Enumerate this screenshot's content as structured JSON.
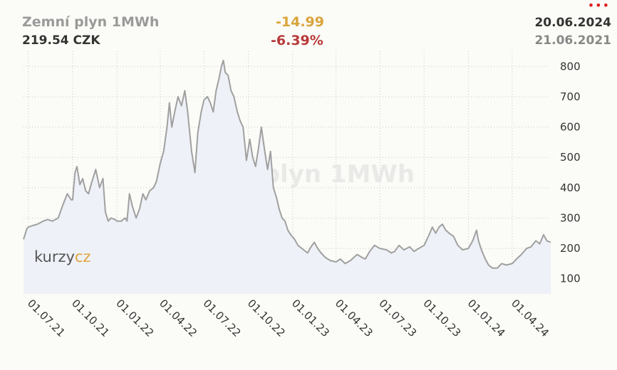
{
  "header": {
    "name": "Zemní plyn 1MWh",
    "price": "219.54 CZK",
    "change": "-14.99",
    "change_pct": "-6.39%",
    "date_to": "20.06.2024",
    "date_from": "21.06.2021",
    "menu_icon": "more-dots-icon",
    "menu_glyph": "•••"
  },
  "watermark": {
    "text": "Zemní plyn 1MWh",
    "logo_main": "kurzy",
    "logo_suffix": "cz"
  },
  "colors": {
    "line": "#a0a0a0",
    "area": "#eef1f7",
    "grid": "#c7c7c7",
    "change": "#d9a43a",
    "change_pct": "#b73a3a",
    "menu": "#dd1f1f"
  },
  "chart_data": {
    "type": "area",
    "title": "Zemní plyn 1MWh",
    "x_range": [
      "2021-06-21",
      "2024-06-20"
    ],
    "ylim": [
      50,
      850
    ],
    "yticks": [
      100,
      200,
      300,
      400,
      500,
      600,
      700,
      800
    ],
    "xtick_labels": [
      "01.07.21",
      "01.10.21",
      "01.01.22",
      "01.04.22",
      "01.07.22",
      "01.10.22",
      "01.01.23",
      "01.04.23",
      "01.07.23",
      "01.10.23",
      "01.01.24",
      "01.04.24"
    ],
    "xtick_dates": [
      "2021-07-01",
      "2021-10-01",
      "2022-01-01",
      "2022-04-01",
      "2022-07-01",
      "2022-10-01",
      "2023-01-01",
      "2023-04-01",
      "2023-07-01",
      "2023-10-01",
      "2024-01-01",
      "2024-04-01"
    ],
    "grid": true,
    "series": [
      {
        "points": [
          [
            "2021-06-21",
            230
          ],
          [
            "2021-06-28",
            265
          ],
          [
            "2021-07-01",
            270
          ],
          [
            "2021-07-10",
            275
          ],
          [
            "2021-07-20",
            280
          ],
          [
            "2021-08-01",
            290
          ],
          [
            "2021-08-10",
            295
          ],
          [
            "2021-08-20",
            290
          ],
          [
            "2021-09-01",
            300
          ],
          [
            "2021-09-10",
            340
          ],
          [
            "2021-09-20",
            380
          ],
          [
            "2021-09-28",
            360
          ],
          [
            "2021-10-01",
            360
          ],
          [
            "2021-10-06",
            450
          ],
          [
            "2021-10-10",
            470
          ],
          [
            "2021-10-16",
            410
          ],
          [
            "2021-10-22",
            430
          ],
          [
            "2021-10-28",
            390
          ],
          [
            "2021-11-03",
            380
          ],
          [
            "2021-11-10",
            420
          ],
          [
            "2021-11-18",
            460
          ],
          [
            "2021-11-26",
            400
          ],
          [
            "2021-12-03",
            430
          ],
          [
            "2021-12-08",
            320
          ],
          [
            "2021-12-14",
            290
          ],
          [
            "2021-12-20",
            300
          ],
          [
            "2021-12-28",
            295
          ],
          [
            "2022-01-01",
            290
          ],
          [
            "2022-01-10",
            290
          ],
          [
            "2022-01-18",
            300
          ],
          [
            "2022-01-22",
            290
          ],
          [
            "2022-01-27",
            380
          ],
          [
            "2022-02-02",
            340
          ],
          [
            "2022-02-10",
            300
          ],
          [
            "2022-02-17",
            330
          ],
          [
            "2022-02-24",
            380
          ],
          [
            "2022-03-02",
            360
          ],
          [
            "2022-03-10",
            390
          ],
          [
            "2022-03-18",
            400
          ],
          [
            "2022-03-24",
            420
          ],
          [
            "2022-04-01",
            480
          ],
          [
            "2022-04-08",
            520
          ],
          [
            "2022-04-15",
            600
          ],
          [
            "2022-04-20",
            680
          ],
          [
            "2022-04-25",
            600
          ],
          [
            "2022-05-01",
            650
          ],
          [
            "2022-05-08",
            700
          ],
          [
            "2022-05-15",
            670
          ],
          [
            "2022-05-22",
            720
          ],
          [
            "2022-05-28",
            650
          ],
          [
            "2022-06-05",
            520
          ],
          [
            "2022-06-12",
            450
          ],
          [
            "2022-06-18",
            580
          ],
          [
            "2022-06-25",
            650
          ],
          [
            "2022-07-01",
            690
          ],
          [
            "2022-07-08",
            700
          ],
          [
            "2022-07-14",
            680
          ],
          [
            "2022-07-20",
            650
          ],
          [
            "2022-07-26",
            720
          ],
          [
            "2022-08-01",
            760
          ],
          [
            "2022-08-06",
            800
          ],
          [
            "2022-08-10",
            820
          ],
          [
            "2022-08-14",
            780
          ],
          [
            "2022-08-20",
            770
          ],
          [
            "2022-08-26",
            720
          ],
          [
            "2022-09-01",
            700
          ],
          [
            "2022-09-08",
            650
          ],
          [
            "2022-09-14",
            620
          ],
          [
            "2022-09-20",
            600
          ],
          [
            "2022-09-27",
            490
          ],
          [
            "2022-10-04",
            560
          ],
          [
            "2022-10-10",
            500
          ],
          [
            "2022-10-16",
            470
          ],
          [
            "2022-10-22",
            530
          ],
          [
            "2022-10-28",
            600
          ],
          [
            "2022-11-04",
            520
          ],
          [
            "2022-11-10",
            460
          ],
          [
            "2022-11-16",
            520
          ],
          [
            "2022-11-22",
            400
          ],
          [
            "2022-11-28",
            370
          ],
          [
            "2022-12-04",
            330
          ],
          [
            "2022-12-10",
            300
          ],
          [
            "2022-12-16",
            290
          ],
          [
            "2022-12-22",
            260
          ],
          [
            "2022-12-28",
            245
          ],
          [
            "2023-01-05",
            230
          ],
          [
            "2023-01-12",
            210
          ],
          [
            "2023-01-20",
            200
          ],
          [
            "2023-02-01",
            185
          ],
          [
            "2023-02-08",
            205
          ],
          [
            "2023-02-15",
            220
          ],
          [
            "2023-02-22",
            200
          ],
          [
            "2023-03-01",
            185
          ],
          [
            "2023-03-10",
            170
          ],
          [
            "2023-03-20",
            160
          ],
          [
            "2023-04-01",
            155
          ],
          [
            "2023-04-10",
            165
          ],
          [
            "2023-04-20",
            150
          ],
          [
            "2023-05-01",
            160
          ],
          [
            "2023-05-15",
            180
          ],
          [
            "2023-05-25",
            170
          ],
          [
            "2023-06-01",
            165
          ],
          [
            "2023-06-10",
            190
          ],
          [
            "2023-06-20",
            210
          ],
          [
            "2023-07-01",
            200
          ],
          [
            "2023-07-15",
            195
          ],
          [
            "2023-07-25",
            185
          ],
          [
            "2023-08-01",
            190
          ],
          [
            "2023-08-10",
            210
          ],
          [
            "2023-08-20",
            195
          ],
          [
            "2023-09-01",
            205
          ],
          [
            "2023-09-10",
            190
          ],
          [
            "2023-09-20",
            200
          ],
          [
            "2023-10-01",
            210
          ],
          [
            "2023-10-10",
            240
          ],
          [
            "2023-10-18",
            270
          ],
          [
            "2023-10-25",
            250
          ],
          [
            "2023-11-01",
            270
          ],
          [
            "2023-11-08",
            280
          ],
          [
            "2023-11-15",
            260
          ],
          [
            "2023-11-22",
            250
          ],
          [
            "2023-12-01",
            240
          ],
          [
            "2023-12-10",
            210
          ],
          [
            "2023-12-20",
            195
          ],
          [
            "2024-01-01",
            200
          ],
          [
            "2024-01-10",
            225
          ],
          [
            "2024-01-18",
            260
          ],
          [
            "2024-01-22",
            225
          ],
          [
            "2024-01-28",
            195
          ],
          [
            "2024-02-05",
            165
          ],
          [
            "2024-02-12",
            145
          ],
          [
            "2024-02-20",
            135
          ],
          [
            "2024-03-01",
            135
          ],
          [
            "2024-03-10",
            150
          ],
          [
            "2024-03-20",
            145
          ],
          [
            "2024-04-01",
            150
          ],
          [
            "2024-04-10",
            165
          ],
          [
            "2024-04-20",
            180
          ],
          [
            "2024-05-01",
            200
          ],
          [
            "2024-05-10",
            205
          ],
          [
            "2024-05-20",
            225
          ],
          [
            "2024-05-28",
            215
          ],
          [
            "2024-06-05",
            245
          ],
          [
            "2024-06-12",
            225
          ],
          [
            "2024-06-20",
            220
          ]
        ]
      }
    ]
  }
}
